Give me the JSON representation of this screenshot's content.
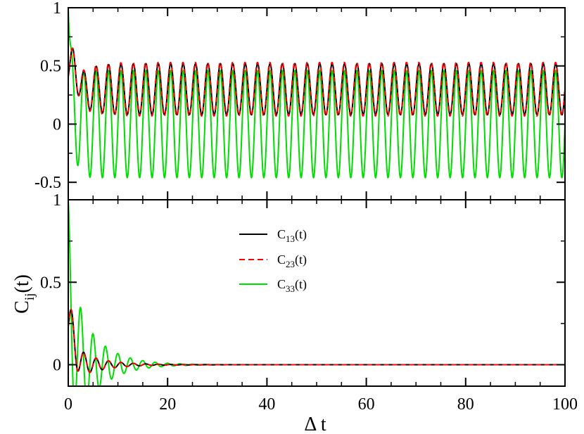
{
  "chart_data": [
    {
      "type": "line",
      "panel": "top",
      "xlim": [
        0,
        100
      ],
      "ylim": [
        -0.65,
        1.0
      ],
      "yticks": [
        1,
        0.5,
        0,
        -0.5
      ],
      "ytick_labels": [
        "1",
        "0.5",
        "0",
        "-0.5"
      ],
      "series": [
        {
          "color": "#000000",
          "dash": "solid",
          "model": {
            "a0": 0.3,
            "a1": 0.3,
            "t0": 0.9,
            "tau1": 2.5,
            "amp": 0.22,
            "omega": 2.51327,
            "phase": 0.0
          }
        },
        {
          "color": "#ff0000",
          "dash": "dashed",
          "model": {
            "a0": 0.3,
            "a1": 0.3,
            "t0": 0.9,
            "tau1": 2.5,
            "amp": 0.23,
            "omega": 2.51327,
            "phase": 0.08
          }
        },
        {
          "color": "#00dd00",
          "dash": "solid",
          "model": {
            "a0": 1.0,
            "a1": 0.0,
            "t0": 0.0,
            "tau1": 1.0,
            "amp": 0.46,
            "omega": 2.51327,
            "phase": 0.0
          }
        }
      ]
    },
    {
      "type": "line",
      "panel": "bottom",
      "xlim": [
        0,
        100
      ],
      "xticks": [
        0,
        20,
        40,
        60,
        80,
        100
      ],
      "xtick_labels": [
        "0",
        "20",
        "40",
        "60",
        "80",
        "100"
      ],
      "xlabel": "Δ t",
      "ylim": [
        -0.13,
        1.0
      ],
      "yticks": [
        1,
        0.5,
        0
      ],
      "ytick_labels": [
        "1",
        "0.5",
        "0"
      ],
      "ylabel": "C",
      "ylabel_sub": "ij",
      "ylabel_suffix": "(t)",
      "legend_placement": "upper-center",
      "series": [
        {
          "name": "C",
          "name_sub": "13",
          "name_suffix": "(t)",
          "color": "#000000",
          "dash": "solid",
          "model": {
            "a0": 0.3,
            "a1": 0.45,
            "t0": 1.0,
            "tau": 5.0,
            "omega": 2.51327
          }
        },
        {
          "name": "C",
          "name_sub": "23",
          "name_suffix": "(t)",
          "color": "#ff0000",
          "dash": "dashed",
          "model": {
            "a0": 0.3,
            "a1": 0.46,
            "t0": 1.0,
            "tau": 5.0,
            "omega": 2.51327
          }
        },
        {
          "name": "C",
          "name_sub": "33",
          "name_suffix": "(t)",
          "color": "#00dd00",
          "dash": "solid",
          "model": {
            "a0": 1.0,
            "a1": 1.0,
            "t0": 0.0,
            "tau": 5.0,
            "omega": 2.51327
          }
        }
      ]
    }
  ]
}
